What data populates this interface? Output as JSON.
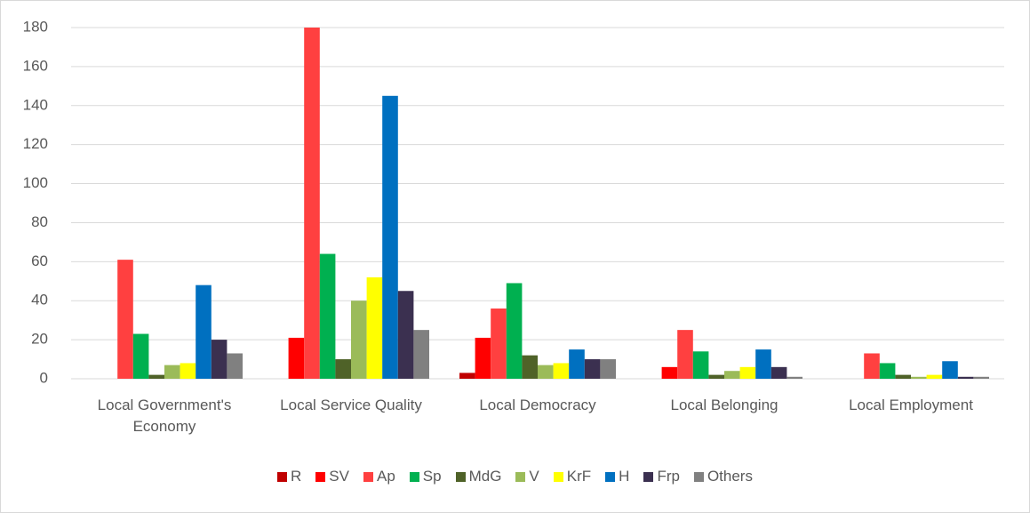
{
  "chart_data": {
    "type": "bar",
    "categories": [
      "Local Government's Economy",
      "Local Service Quality",
      "Local Democracy",
      "Local Belonging",
      "Local Employment"
    ],
    "series": [
      {
        "name": "R",
        "color": "#c00000",
        "values": [
          0,
          0,
          3,
          0,
          0
        ]
      },
      {
        "name": "SV",
        "color": "#ff0000",
        "values": [
          0,
          21,
          21,
          6,
          0
        ]
      },
      {
        "name": "Ap",
        "color": "#ff4040",
        "values": [
          61,
          180,
          36,
          25,
          13
        ]
      },
      {
        "name": "Sp",
        "color": "#00b050",
        "values": [
          23,
          64,
          49,
          14,
          8
        ]
      },
      {
        "name": "MdG",
        "color": "#4f6228",
        "values": [
          2,
          10,
          12,
          2,
          2
        ]
      },
      {
        "name": "V",
        "color": "#9bbb59",
        "values": [
          7,
          40,
          7,
          4,
          1
        ]
      },
      {
        "name": "KrF",
        "color": "#ffff00",
        "values": [
          8,
          52,
          8,
          6,
          2
        ]
      },
      {
        "name": "H",
        "color": "#0070c0",
        "values": [
          48,
          145,
          15,
          15,
          9
        ]
      },
      {
        "name": "Frp",
        "color": "#3b3050",
        "values": [
          20,
          45,
          10,
          6,
          1
        ]
      },
      {
        "name": "Others",
        "color": "#808080",
        "values": [
          13,
          25,
          10,
          1,
          1
        ]
      }
    ],
    "ylim": [
      0,
      180
    ],
    "yticks": [
      0,
      20,
      40,
      60,
      80,
      100,
      120,
      140,
      160,
      180
    ],
    "grid": true
  }
}
